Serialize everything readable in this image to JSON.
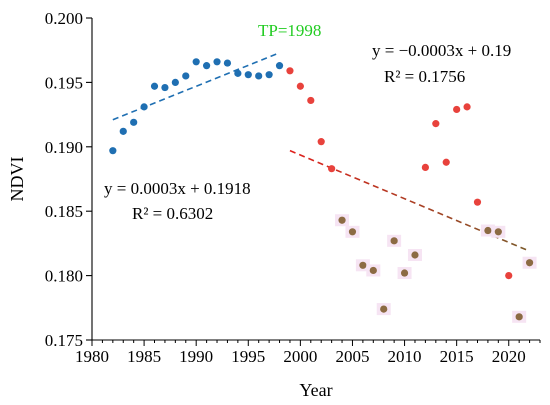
{
  "chart_data": {
    "type": "scatter",
    "xlabel": "Year",
    "ylabel": "NDVI",
    "xlim": [
      1980,
      2023
    ],
    "ylim": [
      0.175,
      0.2
    ],
    "xticks": [
      "1980",
      "1985",
      "1990",
      "1995",
      "2000",
      "2005",
      "2010",
      "2015",
      "2020"
    ],
    "xtick_values": [
      1980,
      1985,
      1990,
      1995,
      2000,
      2005,
      2010,
      2015,
      2020
    ],
    "yticks": [
      "0.175",
      "0.180",
      "0.185",
      "0.190",
      "0.195",
      "0.200"
    ],
    "ytick_values": [
      0.175,
      0.18,
      0.185,
      0.19,
      0.195,
      0.2
    ],
    "grid": false,
    "colors": {
      "before": "#1f6fb2",
      "after": "#e8423c",
      "low": "#8c6b43",
      "tp": "#22cc22",
      "fit_before": "#1f6fb2",
      "fit_after": "#e0201c",
      "fit_after_end": "#7a5a2a"
    },
    "series": [
      {
        "points": [
          [
            1982,
            0.1897
          ],
          [
            1983,
            0.1912
          ],
          [
            1984,
            0.1919
          ],
          [
            1985,
            0.1931
          ],
          [
            1986,
            0.1947
          ],
          [
            1987,
            0.1946
          ],
          [
            1988,
            0.195
          ],
          [
            1989,
            0.1955
          ],
          [
            1990,
            0.1966
          ],
          [
            1991,
            0.1963
          ],
          [
            1992,
            0.1966
          ],
          [
            1993,
            0.1965
          ],
          [
            1994,
            0.1957
          ],
          [
            1995,
            0.1956
          ],
          [
            1996,
            0.1955
          ],
          [
            1997,
            0.1956
          ],
          [
            1998,
            0.1963
          ]
        ]
      },
      {
        "points": [
          [
            1999,
            0.1959
          ],
          [
            2000,
            0.1947
          ],
          [
            2001,
            0.1936
          ],
          [
            2002,
            0.1904
          ],
          [
            2003,
            0.1883
          ],
          [
            2004,
            0.1843
          ],
          [
            2005,
            0.1834
          ],
          [
            2006,
            0.1808
          ],
          [
            2007,
            0.1804
          ],
          [
            2008,
            0.1774
          ],
          [
            2009,
            0.1827
          ],
          [
            2010,
            0.1802
          ],
          [
            2011,
            0.1816
          ],
          [
            2012,
            0.1884
          ],
          [
            2013,
            0.1918
          ],
          [
            2014,
            0.1888
          ],
          [
            2015,
            0.1929
          ],
          [
            2016,
            0.1931
          ],
          [
            2017,
            0.1857
          ],
          [
            2018,
            0.1835
          ],
          [
            2019,
            0.1834
          ],
          [
            2020,
            0.18
          ],
          [
            2021,
            0.1768
          ],
          [
            2022,
            0.181
          ]
        ],
        "low_marker_years": [
          2004,
          2005,
          2006,
          2007,
          2008,
          2009,
          2010,
          2011,
          2018,
          2019,
          2021,
          2022
        ]
      }
    ],
    "trendlines": [
      {
        "x": [
          1982,
          1998
        ],
        "y": [
          0.1921,
          0.1973
        ]
      },
      {
        "x": [
          1999,
          2022
        ],
        "y": [
          0.1897,
          0.1819
        ]
      }
    ],
    "annotations": {
      "tp_label": "TP=1998",
      "eq_before": "y = 0.0003x + 0.1918",
      "r2_before": "R² = 0.6302",
      "eq_after": "y = −0.0003x + 0.19",
      "r2_after": "R² = 0.1756"
    }
  }
}
